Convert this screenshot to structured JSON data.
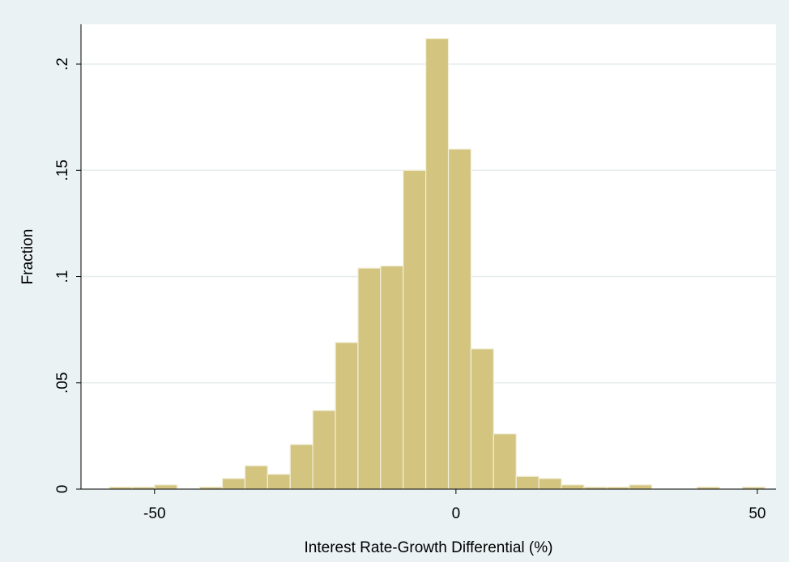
{
  "chart_data": {
    "type": "histogram",
    "x_label": "Interest Rate-Growth Differential (%)",
    "y_label": "Fraction",
    "bins": [
      -57.5,
      -53.75,
      -50,
      -46.25,
      -42.5,
      -38.75,
      -35,
      -31.25,
      -27.5,
      -23.75,
      -20,
      -16.25,
      -12.5,
      -8.75,
      -5,
      -1.25,
      2.5,
      6.25,
      10,
      13.75,
      17.5,
      21.25,
      25,
      28.75,
      32.5,
      36.25,
      40,
      43.75,
      47.5,
      51.25
    ],
    "values": [
      0.001,
      0.001,
      0.002,
      0,
      0.001,
      0.005,
      0.011,
      0.007,
      0.021,
      0.037,
      0.069,
      0.104,
      0.105,
      0.15,
      0.212,
      0.16,
      0.066,
      0.026,
      0.006,
      0.005,
      0.002,
      0.001,
      0.001,
      0.002,
      0,
      0,
      0.001,
      0,
      0.001
    ],
    "color": "#d3c47f",
    "xlim": [
      -62.2,
      53.1
    ],
    "ylim": [
      0,
      0.2187
    ],
    "xticks": [
      -50,
      0,
      50
    ],
    "yticks": [
      0,
      {
        "value": 0.05,
        "label": ".05"
      },
      {
        "value": 0.1,
        "label": ".1"
      },
      {
        "value": 0.15,
        "label": ".15"
      },
      {
        "value": 0.2,
        "label": ".2"
      }
    ],
    "grid": true
  }
}
